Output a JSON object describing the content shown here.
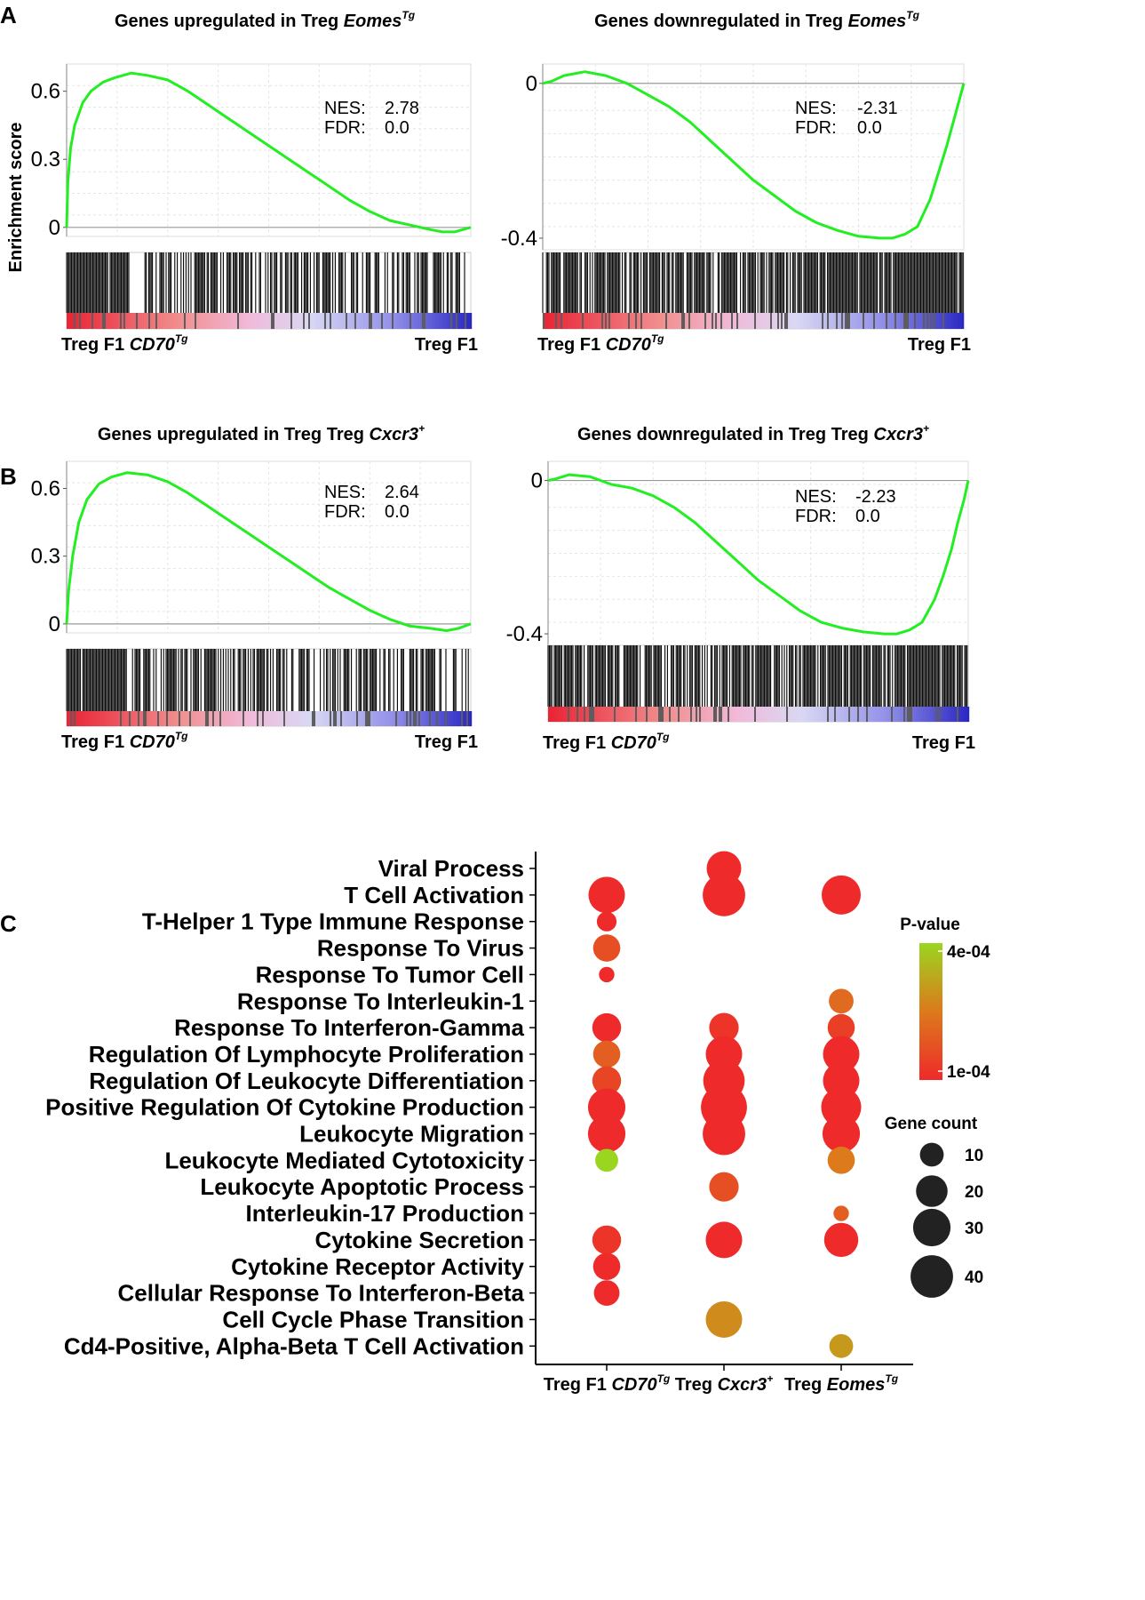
{
  "figure": {
    "panel_a": "A",
    "panel_b": "B",
    "panel_c": "C",
    "ylabel": "Enrichment score"
  },
  "chart_data": [
    {
      "type": "line",
      "panel": "A",
      "title_main": "Genes upregulated in Treg ",
      "title_italic": "Eomes",
      "title_sup": "Tg",
      "ylabel": "Enrichment score",
      "yticks": [
        "0.6",
        "0.3",
        "0"
      ],
      "ylim": [
        -0.04,
        0.72
      ],
      "nes_label": "NES:",
      "nes": "2.78",
      "fdr_label": "FDR:",
      "fdr": "0.0",
      "x_left": "Treg F1 ",
      "x_left_italic": "CD70",
      "x_left_sup": "Tg",
      "x_right": "Treg F1",
      "x": [
        0,
        0.3,
        1,
        2,
        4,
        6,
        9,
        12,
        16,
        20,
        25,
        30,
        35,
        40,
        45,
        50,
        55,
        60,
        65,
        70,
        75,
        80,
        85,
        90,
        93,
        96,
        98,
        100
      ],
      "es": [
        0,
        0.2,
        0.35,
        0.45,
        0.55,
        0.6,
        0.64,
        0.66,
        0.68,
        0.67,
        0.65,
        0.6,
        0.54,
        0.48,
        0.42,
        0.36,
        0.3,
        0.24,
        0.18,
        0.12,
        0.07,
        0.03,
        0.01,
        -0.01,
        -0.02,
        -0.02,
        -0.01,
        0
      ]
    },
    {
      "type": "line",
      "panel": "A",
      "title_main": "Genes downregulated in Treg ",
      "title_italic": "Eomes",
      "title_sup": "Tg",
      "yticks": [
        "0",
        "-0.4"
      ],
      "ylim": [
        -0.43,
        0.05
      ],
      "nes_label": "NES:",
      "nes": "-2.31",
      "fdr_label": "FDR:",
      "fdr": "0.0",
      "x_left": "Treg F1 ",
      "x_left_italic": "CD70",
      "x_left_sup": "Tg",
      "x_right": "Treg F1",
      "x": [
        0,
        2,
        5,
        10,
        15,
        20,
        25,
        30,
        35,
        40,
        45,
        50,
        55,
        60,
        65,
        70,
        75,
        80,
        83,
        86,
        89,
        92,
        94,
        96,
        97.5,
        99,
        100
      ],
      "es": [
        0,
        0.005,
        0.02,
        0.03,
        0.02,
        0,
        -0.03,
        -0.06,
        -0.1,
        -0.15,
        -0.2,
        -0.25,
        -0.29,
        -0.33,
        -0.36,
        -0.38,
        -0.395,
        -0.4,
        -0.4,
        -0.39,
        -0.37,
        -0.3,
        -0.23,
        -0.16,
        -0.1,
        -0.04,
        0
      ]
    },
    {
      "type": "line",
      "panel": "B",
      "title_main": "Genes upregulated in Treg Treg ",
      "title_italic": "Cxcr3",
      "title_sup": "+",
      "yticks": [
        "0.6",
        "0.3",
        "0"
      ],
      "ylim": [
        -0.04,
        0.72
      ],
      "nes_label": "NES:",
      "nes": "2.64",
      "fdr_label": "FDR:",
      "fdr": "0.0",
      "x_left": "Treg F1 ",
      "x_left_italic": "CD70",
      "x_left_sup": "Tg",
      "x_right": "Treg F1",
      "x": [
        0,
        0.5,
        1.5,
        3,
        5,
        8,
        11,
        15,
        20,
        25,
        30,
        35,
        40,
        45,
        50,
        55,
        60,
        65,
        70,
        75,
        80,
        85,
        90,
        94,
        97,
        100
      ],
      "es": [
        0,
        0.15,
        0.3,
        0.45,
        0.55,
        0.62,
        0.65,
        0.67,
        0.66,
        0.63,
        0.58,
        0.52,
        0.46,
        0.4,
        0.34,
        0.28,
        0.22,
        0.16,
        0.11,
        0.06,
        0.02,
        -0.01,
        -0.02,
        -0.03,
        -0.02,
        0
      ]
    },
    {
      "type": "line",
      "panel": "B",
      "title_main": "Genes downregulated in Treg Treg ",
      "title_italic": "Cxcr3",
      "title_sup": "+",
      "yticks": [
        "0",
        "-0.4"
      ],
      "ylim": [
        -0.43,
        0.05
      ],
      "nes_label": "NES:",
      "nes": "-2.23",
      "fdr_label": "FDR:",
      "fdr": "0.0",
      "x_left": "Treg F1 ",
      "x_left_italic": "CD70",
      "x_left_sup": "Tg",
      "x_right": "Treg F1",
      "x": [
        0,
        2,
        5,
        10,
        15,
        20,
        25,
        30,
        35,
        40,
        45,
        50,
        55,
        60,
        65,
        70,
        75,
        80,
        83,
        86,
        89,
        92,
        94,
        96,
        97.5,
        99,
        100
      ],
      "es": [
        0,
        0.005,
        0.015,
        0.01,
        -0.01,
        -0.02,
        -0.04,
        -0.07,
        -0.11,
        -0.16,
        -0.21,
        -0.26,
        -0.3,
        -0.34,
        -0.37,
        -0.385,
        -0.395,
        -0.4,
        -0.4,
        -0.39,
        -0.37,
        -0.31,
        -0.25,
        -0.18,
        -0.11,
        -0.05,
        0
      ]
    },
    {
      "type": "scatter",
      "panel": "C",
      "subtype": "dot-plot",
      "terms": [
        "Viral Process",
        "T Cell Activation",
        "T-Helper 1 Type Immune Response",
        "Response To Virus",
        "Response To Tumor Cell",
        "Response To Interleukin-1",
        "Response To Interferon-Gamma",
        "Regulation Of Lymphocyte Proliferation",
        "Regulation Of Leukocyte Differentiation",
        "Positive Regulation Of Cytokine Production",
        "Leukocyte Migration",
        "Leukocyte Mediated Cytotoxicity",
        "Leukocyte Apoptotic Process",
        "Interleukin-17 Production",
        "Cytokine Secretion",
        "Cytokine Receptor Activity",
        "Cellular Response To Interferon-Beta",
        "Cell Cycle Phase Transition",
        "Cd4-Positive, Alpha-Beta T Cell Activation"
      ],
      "groups": [
        {
          "name": "Treg F1 ",
          "italic": "CD70",
          "sup": "Tg"
        },
        {
          "name": "Treg ",
          "italic": "Cxcr3",
          "sup": "+"
        },
        {
          "name": "Treg ",
          "italic": "Eomes",
          "sup": "Tg"
        }
      ],
      "points": [
        {
          "group": 0,
          "term": 1,
          "count": 28,
          "p": 0.0001
        },
        {
          "group": 0,
          "term": 2,
          "count": 6,
          "p": 0.0001
        },
        {
          "group": 0,
          "term": 3,
          "count": 14,
          "p": 0.00017
        },
        {
          "group": 0,
          "term": 4,
          "count": 3,
          "p": 0.0001
        },
        {
          "group": 0,
          "term": 6,
          "count": 16,
          "p": 0.0001
        },
        {
          "group": 0,
          "term": 7,
          "count": 14,
          "p": 0.0002
        },
        {
          "group": 0,
          "term": 8,
          "count": 16,
          "p": 0.00015
        },
        {
          "group": 0,
          "term": 9,
          "count": 30,
          "p": 0.0001
        },
        {
          "group": 0,
          "term": 10,
          "count": 30,
          "p": 0.0001
        },
        {
          "group": 0,
          "term": 11,
          "count": 9,
          "p": 0.0004
        },
        {
          "group": 0,
          "term": 14,
          "count": 16,
          "p": 0.00012
        },
        {
          "group": 0,
          "term": 15,
          "count": 14,
          "p": 0.0001
        },
        {
          "group": 0,
          "term": 16,
          "count": 12,
          "p": 0.0001
        },
        {
          "group": 1,
          "term": 0,
          "count": 25,
          "p": 0.0001
        },
        {
          "group": 1,
          "term": 1,
          "count": 40,
          "p": 0.0001
        },
        {
          "group": 1,
          "term": 6,
          "count": 17,
          "p": 0.00012
        },
        {
          "group": 1,
          "term": 7,
          "count": 28,
          "p": 0.0001
        },
        {
          "group": 1,
          "term": 8,
          "count": 38,
          "p": 0.0001
        },
        {
          "group": 1,
          "term": 9,
          "count": 48,
          "p": 0.0001
        },
        {
          "group": 1,
          "term": 10,
          "count": 40,
          "p": 0.0001
        },
        {
          "group": 1,
          "term": 12,
          "count": 17,
          "p": 0.00017
        },
        {
          "group": 1,
          "term": 14,
          "count": 28,
          "p": 0.0001
        },
        {
          "group": 1,
          "term": 17,
          "count": 28,
          "p": 0.00028
        },
        {
          "group": 2,
          "term": 1,
          "count": 33,
          "p": 0.0001
        },
        {
          "group": 2,
          "term": 5,
          "count": 11,
          "p": 0.00022
        },
        {
          "group": 2,
          "term": 6,
          "count": 14,
          "p": 0.00014
        },
        {
          "group": 2,
          "term": 7,
          "count": 28,
          "p": 0.0001
        },
        {
          "group": 2,
          "term": 8,
          "count": 28,
          "p": 0.0001
        },
        {
          "group": 2,
          "term": 9,
          "count": 35,
          "p": 0.0001
        },
        {
          "group": 2,
          "term": 10,
          "count": 30,
          "p": 0.0001
        },
        {
          "group": 2,
          "term": 11,
          "count": 14,
          "p": 0.00025
        },
        {
          "group": 2,
          "term": 13,
          "count": 3,
          "p": 0.0002
        },
        {
          "group": 2,
          "term": 14,
          "count": 24,
          "p": 0.0001
        },
        {
          "group": 2,
          "term": 18,
          "count": 10,
          "p": 0.0003
        }
      ],
      "legend": {
        "pvalue_title": "P-value",
        "pvalue_high": "4e-04",
        "pvalue_low": "1e-04",
        "pvalue_range": [
          0.0001,
          0.0004
        ],
        "count_title": "Gene count",
        "count_levels": [
          10,
          20,
          30,
          40
        ],
        "count_labels": [
          "10",
          "20",
          "30",
          "40"
        ]
      }
    }
  ]
}
